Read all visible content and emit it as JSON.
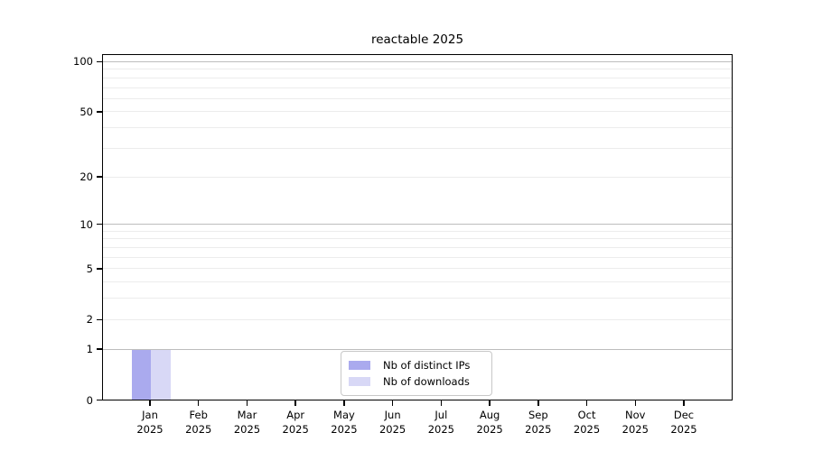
{
  "chart_data": {
    "type": "bar",
    "title": "reactable 2025",
    "categories": [
      "Jan",
      "Feb",
      "Mar",
      "Apr",
      "May",
      "Jun",
      "Jul",
      "Aug",
      "Sep",
      "Oct",
      "Nov",
      "Dec"
    ],
    "category_year": "2025",
    "series": [
      {
        "name": "Nb of distinct IPs",
        "color": "#aaaaee",
        "values": [
          1,
          0,
          0,
          0,
          0,
          0,
          0,
          0,
          0,
          0,
          0,
          0
        ]
      },
      {
        "name": "Nb of downloads",
        "color": "#d8d8f6",
        "values": [
          1,
          0,
          0,
          0,
          0,
          0,
          0,
          0,
          0,
          0,
          0,
          0
        ]
      }
    ],
    "yscale": "log1p",
    "ylim": [
      0,
      111
    ],
    "yticks": [
      0,
      1,
      2,
      5,
      10,
      20,
      50,
      100
    ],
    "grid_major": [
      1,
      10,
      100
    ],
    "grid_minor": [
      2,
      3,
      4,
      5,
      6,
      7,
      8,
      9,
      20,
      30,
      40,
      50,
      60,
      70,
      80,
      90
    ],
    "legend_position": "bottom-center",
    "colors": {
      "grid_major": "#bdbdbd",
      "grid_minor": "#ececec",
      "axis": "#000000",
      "background": "#ffffff"
    }
  }
}
